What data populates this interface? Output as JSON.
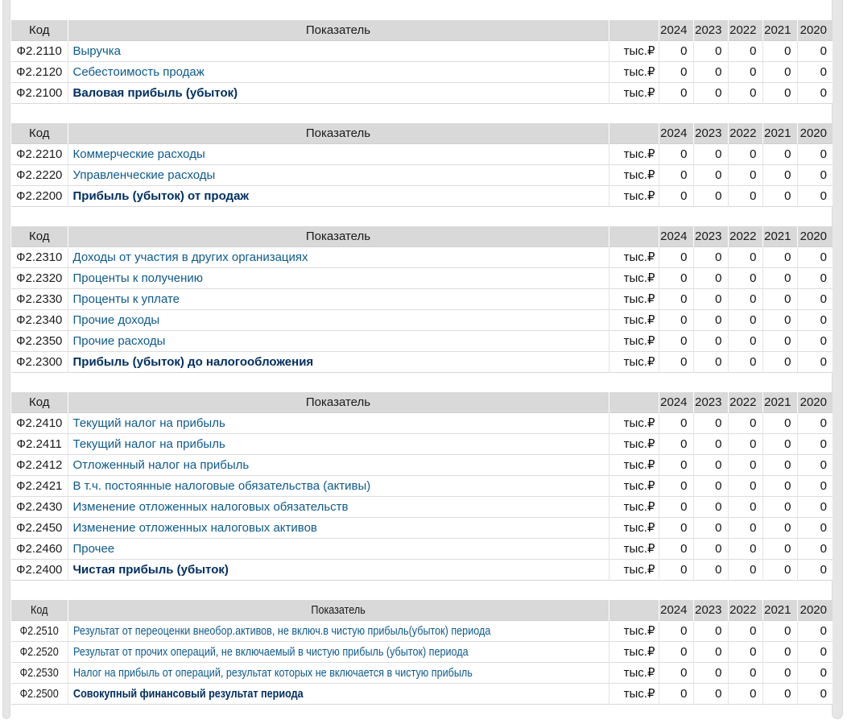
{
  "columns": {
    "code": "Код",
    "indicator": "Показатель",
    "unit_header": "",
    "years": [
      "2024",
      "2023",
      "2022",
      "2021",
      "2020"
    ]
  },
  "tables": [
    {
      "name": "gross-profit-section",
      "condensed": false,
      "rows": [
        {
          "code": "Ф2.2110",
          "label": "Выручка",
          "bold": false,
          "unit": "тыс.₽",
          "values": [
            "0",
            "0",
            "0",
            "0",
            "0"
          ]
        },
        {
          "code": "Ф2.2120",
          "label": "Себестоимость продаж",
          "bold": false,
          "unit": "тыс.₽",
          "values": [
            "0",
            "0",
            "0",
            "0",
            "0"
          ]
        },
        {
          "code": "Ф2.2100",
          "label": "Валовая прибыль (убыток)",
          "bold": true,
          "unit": "тыс.₽",
          "values": [
            "0",
            "0",
            "0",
            "0",
            "0"
          ]
        }
      ]
    },
    {
      "name": "sales-profit-section",
      "condensed": false,
      "rows": [
        {
          "code": "Ф2.2210",
          "label": "Коммерческие расходы",
          "bold": false,
          "unit": "тыс.₽",
          "values": [
            "0",
            "0",
            "0",
            "0",
            "0"
          ]
        },
        {
          "code": "Ф2.2220",
          "label": "Управленческие расходы",
          "bold": false,
          "unit": "тыс.₽",
          "values": [
            "0",
            "0",
            "0",
            "0",
            "0"
          ]
        },
        {
          "code": "Ф2.2200",
          "label": "Прибыль (убыток) от продаж",
          "bold": true,
          "unit": "тыс.₽",
          "values": [
            "0",
            "0",
            "0",
            "0",
            "0"
          ]
        }
      ]
    },
    {
      "name": "pretax-profit-section",
      "condensed": false,
      "rows": [
        {
          "code": "Ф2.2310",
          "label": "Доходы от участия в других организациях",
          "bold": false,
          "unit": "тыс.₽",
          "values": [
            "0",
            "0",
            "0",
            "0",
            "0"
          ]
        },
        {
          "code": "Ф2.2320",
          "label": "Проценты к получению",
          "bold": false,
          "unit": "тыс.₽",
          "values": [
            "0",
            "0",
            "0",
            "0",
            "0"
          ]
        },
        {
          "code": "Ф2.2330",
          "label": "Проценты к уплате",
          "bold": false,
          "unit": "тыс.₽",
          "values": [
            "0",
            "0",
            "0",
            "0",
            "0"
          ]
        },
        {
          "code": "Ф2.2340",
          "label": "Прочие доходы",
          "bold": false,
          "unit": "тыс.₽",
          "values": [
            "0",
            "0",
            "0",
            "0",
            "0"
          ]
        },
        {
          "code": "Ф2.2350",
          "label": "Прочие расходы",
          "bold": false,
          "unit": "тыс.₽",
          "values": [
            "0",
            "0",
            "0",
            "0",
            "0"
          ]
        },
        {
          "code": "Ф2.2300",
          "label": "Прибыль (убыток) до налогообложения",
          "bold": true,
          "unit": "тыс.₽",
          "values": [
            "0",
            "0",
            "0",
            "0",
            "0"
          ]
        }
      ]
    },
    {
      "name": "net-profit-section",
      "condensed": false,
      "rows": [
        {
          "code": "Ф2.2410",
          "label": "Текущий налог на прибыль",
          "bold": false,
          "unit": "тыс.₽",
          "values": [
            "0",
            "0",
            "0",
            "0",
            "0"
          ]
        },
        {
          "code": "Ф2.2411",
          "label": "Текущий налог на прибыль",
          "bold": false,
          "unit": "тыс.₽",
          "values": [
            "0",
            "0",
            "0",
            "0",
            "0"
          ]
        },
        {
          "code": "Ф2.2412",
          "label": "Отложенный налог на прибыль",
          "bold": false,
          "unit": "тыс.₽",
          "values": [
            "0",
            "0",
            "0",
            "0",
            "0"
          ]
        },
        {
          "code": "Ф2.2421",
          "label": "В т.ч. постоянные налоговые обязательства (активы)",
          "bold": false,
          "unit": "тыс.₽",
          "values": [
            "0",
            "0",
            "0",
            "0",
            "0"
          ]
        },
        {
          "code": "Ф2.2430",
          "label": "Изменение отложенных налоговых обязательств",
          "bold": false,
          "unit": "тыс.₽",
          "values": [
            "0",
            "0",
            "0",
            "0",
            "0"
          ]
        },
        {
          "code": "Ф2.2450",
          "label": "Изменение отложенных налоговых активов",
          "bold": false,
          "unit": "тыс.₽",
          "values": [
            "0",
            "0",
            "0",
            "0",
            "0"
          ]
        },
        {
          "code": "Ф2.2460",
          "label": "Прочее",
          "bold": false,
          "unit": "тыс.₽",
          "values": [
            "0",
            "0",
            "0",
            "0",
            "0"
          ]
        },
        {
          "code": "Ф2.2400",
          "label": "Чистая прибыль (убыток)",
          "bold": true,
          "unit": "тыс.₽",
          "values": [
            "0",
            "0",
            "0",
            "0",
            "0"
          ]
        }
      ]
    },
    {
      "name": "comprehensive-result-section",
      "condensed": true,
      "rows": [
        {
          "code": "Ф2.2510",
          "label": "Результат от переоценки внеобор.активов, не включ.в чистую прибыль(убыток) периода",
          "bold": false,
          "unit": "тыс.₽",
          "values": [
            "0",
            "0",
            "0",
            "0",
            "0"
          ]
        },
        {
          "code": "Ф2.2520",
          "label": "Результат от прочих операций, не включаемый в чистую прибыль (убыток) периода",
          "bold": false,
          "unit": "тыс.₽",
          "values": [
            "0",
            "0",
            "0",
            "0",
            "0"
          ]
        },
        {
          "code": "Ф2.2530",
          "label": "Налог на прибыль от операций, результат которых не включается в чистую прибыль",
          "bold": false,
          "unit": "тыс.₽",
          "values": [
            "0",
            "0",
            "0",
            "0",
            "0"
          ]
        },
        {
          "code": "Ф2.2500",
          "label": "Совокупный финансовый результат периода",
          "bold": true,
          "unit": "тыс.₽",
          "values": [
            "0",
            "0",
            "0",
            "0",
            "0"
          ]
        }
      ]
    }
  ]
}
